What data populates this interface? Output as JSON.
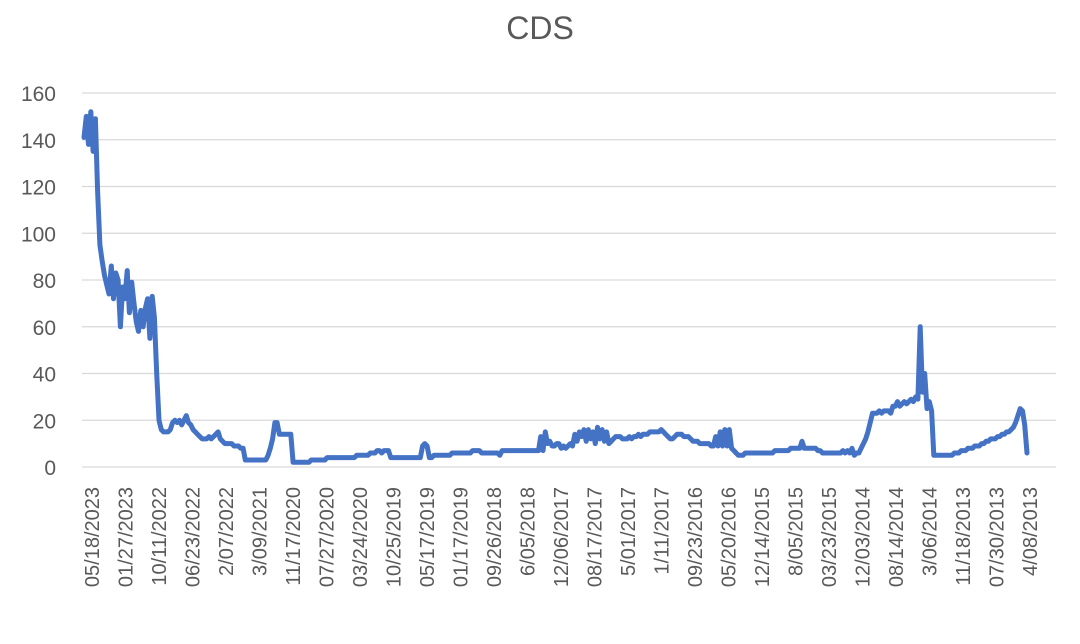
{
  "chart_data": {
    "type": "line",
    "title": "CDS",
    "xlabel": "",
    "ylabel": "",
    "ylim": [
      0,
      160
    ],
    "yticks": [
      0,
      20,
      40,
      60,
      80,
      100,
      120,
      140,
      160
    ],
    "grid": true,
    "legend": "none",
    "x_tick_labels": [
      "05/18/2023",
      "01/27/2023",
      "10/11/2022",
      "06/23/2022",
      "2/07/2022",
      "3/09/2021",
      "11/17/2020",
      "07/27/2020",
      "03/24/2020",
      "10/25/2019",
      "05/17/2019",
      "01/17/2019",
      "09/26/2018",
      "6/05/2018",
      "12/06/2017",
      "08/17/2017",
      "5/01/2017",
      "1/11/2017",
      "09/23/2016",
      "05/20/2016",
      "12/14/2015",
      "8/05/2015",
      "03/23/2015",
      "12/03/2014",
      "08/14/2014",
      "3/06/2014",
      "11/18/2013",
      "07/30/2013",
      "4/08/2013"
    ],
    "colors": {
      "line": "#4472C4",
      "grid": "#D9D9D9",
      "text": "#595959"
    },
    "series": [
      {
        "values": [
          141,
          150,
          138,
          152,
          135,
          149,
          118,
          95,
          88,
          82,
          78,
          74,
          86,
          72,
          83,
          80,
          60,
          77,
          72,
          84,
          66,
          79,
          70,
          62,
          58,
          67,
          60,
          68,
          72,
          55,
          73,
          64,
          40,
          20,
          16,
          15,
          15,
          15,
          16,
          19,
          20,
          19,
          20,
          18,
          20,
          22,
          19,
          18,
          16,
          15,
          14,
          13,
          12,
          12,
          12,
          13,
          12,
          13,
          14,
          15,
          12,
          11,
          10,
          10,
          10,
          10,
          9,
          9,
          9,
          8,
          8,
          3,
          3,
          3,
          3,
          3,
          3,
          3,
          3,
          3,
          3,
          5,
          8,
          12,
          19,
          19,
          14,
          14,
          14,
          14,
          14,
          14,
          2,
          2,
          2,
          2,
          2,
          2,
          2,
          2,
          3,
          3,
          3,
          3,
          3,
          3,
          3,
          4,
          4,
          4,
          4,
          4,
          4,
          4,
          4,
          4,
          4,
          4,
          4,
          4,
          5,
          5,
          5,
          5,
          5,
          5,
          6,
          6,
          6,
          7,
          7,
          6,
          7,
          7,
          7,
          4,
          4,
          4,
          4,
          4,
          4,
          4,
          4,
          4,
          4,
          4,
          4,
          4,
          4,
          9,
          10,
          9,
          4,
          4,
          5,
          5,
          5,
          5,
          5,
          5,
          5,
          5,
          6,
          6,
          6,
          6,
          6,
          6,
          6,
          6,
          6,
          7,
          7,
          7,
          7,
          6,
          6,
          6,
          6,
          6,
          6,
          6,
          6,
          5,
          7,
          7,
          7,
          7,
          7,
          7,
          7,
          7,
          7,
          7,
          7,
          7,
          7,
          7,
          7,
          7,
          7,
          13,
          7,
          15,
          10,
          11,
          9,
          9,
          10,
          10,
          8,
          9,
          8,
          9,
          10,
          9,
          14,
          11,
          15,
          13,
          16,
          11,
          16,
          12,
          15,
          10,
          17,
          12,
          16,
          11,
          15,
          10,
          11,
          12,
          13,
          13,
          13,
          12,
          12,
          12,
          13,
          12,
          13,
          13,
          14,
          13,
          14,
          14,
          14,
          15,
          15,
          15,
          15,
          15,
          16,
          15,
          14,
          13,
          12,
          12,
          13,
          14,
          14,
          14,
          13,
          13,
          13,
          12,
          11,
          11,
          11,
          10,
          10,
          10,
          10,
          10,
          9,
          9,
          13,
          9,
          15,
          9,
          16,
          9,
          16,
          8,
          7,
          6,
          5,
          5,
          5,
          6,
          6,
          6,
          6,
          6,
          6,
          6,
          6,
          6,
          6,
          6,
          6,
          6,
          7,
          7,
          7,
          7,
          7,
          7,
          7,
          8,
          8,
          8,
          8,
          8,
          11,
          8,
          8,
          8,
          8,
          8,
          8,
          7,
          7,
          6,
          6,
          6,
          6,
          6,
          6,
          6,
          6,
          6,
          7,
          6,
          7,
          6,
          8,
          5,
          6,
          6,
          8,
          10,
          12,
          15,
          19,
          23,
          23,
          23,
          24,
          23,
          24,
          24,
          24,
          23,
          26,
          26,
          28,
          26,
          27,
          28,
          27,
          28,
          29,
          28,
          30,
          29,
          60,
          32,
          40,
          25,
          28,
          24,
          5,
          5,
          5,
          5,
          5,
          5,
          5,
          5,
          5,
          6,
          6,
          6,
          7,
          7,
          7,
          8,
          8,
          8,
          9,
          9,
          9,
          10,
          10,
          11,
          11,
          12,
          12,
          12,
          13,
          13,
          14,
          14,
          15,
          15,
          16,
          17,
          19,
          22,
          25,
          24,
          18,
          6
        ]
      }
    ]
  }
}
